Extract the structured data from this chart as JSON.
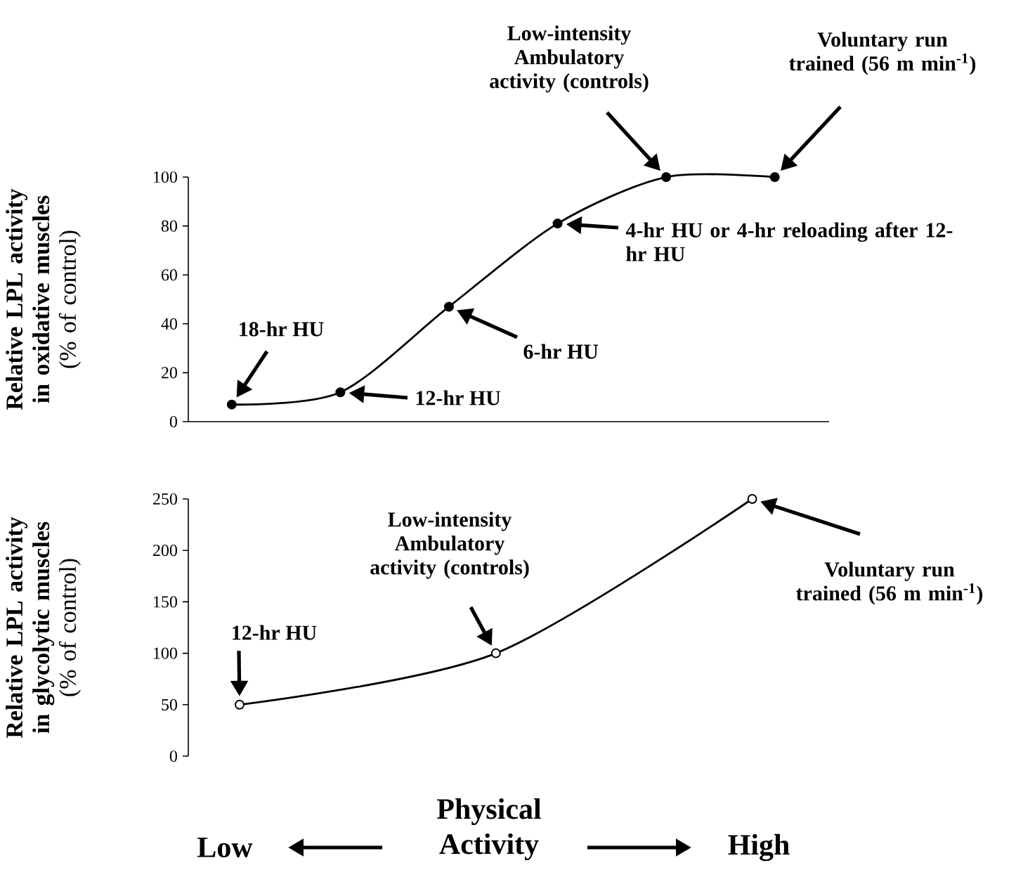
{
  "chart_data": [
    {
      "type": "line",
      "ylabel": "**Relative LPL activity in oxidative muscles** (% of control)",
      "categories": [
        null,
        null,
        null,
        null,
        null,
        null
      ],
      "series": [
        {
          "color": "#000000",
          "values": [
            7,
            12,
            47,
            81,
            100,
            100
          ]
        }
      ],
      "ylim": [
        0,
        100
      ],
      "yticks": [
        0,
        20,
        40,
        60,
        80,
        100
      ],
      "tick_labels": "y",
      "marker": "circle",
      "line_style": "solid",
      "annotations": [
        "18-hr HU",
        "12-hr HU",
        "6-hr HU",
        "4-hr HU or 4-hr reloading after 12-hr HU",
        "Low-intensity Ambulatory activity (controls)",
        "Voluntary run trained (56 m min$^{-1}$)"
      ]
    },
    {
      "type": "line",
      "ylabel": "**Relative LPL activity in glycolytic muscles** (% of control)",
      "xlabel": "Physical Activity",
      "categories": [
        null,
        null,
        null
      ],
      "series": [
        {
          "color": "#000000",
          "values": [
            50,
            100,
            250
          ]
        }
      ],
      "ylim": [
        0,
        250
      ],
      "yticks": [
        0,
        50,
        100,
        150,
        200,
        250
      ],
      "tick_labels": "y",
      "marker": "circle",
      "line_style": "solid",
      "annotations": [
        "12-hr HU",
        "Low-intensity Ambulatory activity (controls)",
        "Voluntary run trained (56 m min$^{-1}$)",
        "Low",
        "High"
      ]
    }
  ]
}
